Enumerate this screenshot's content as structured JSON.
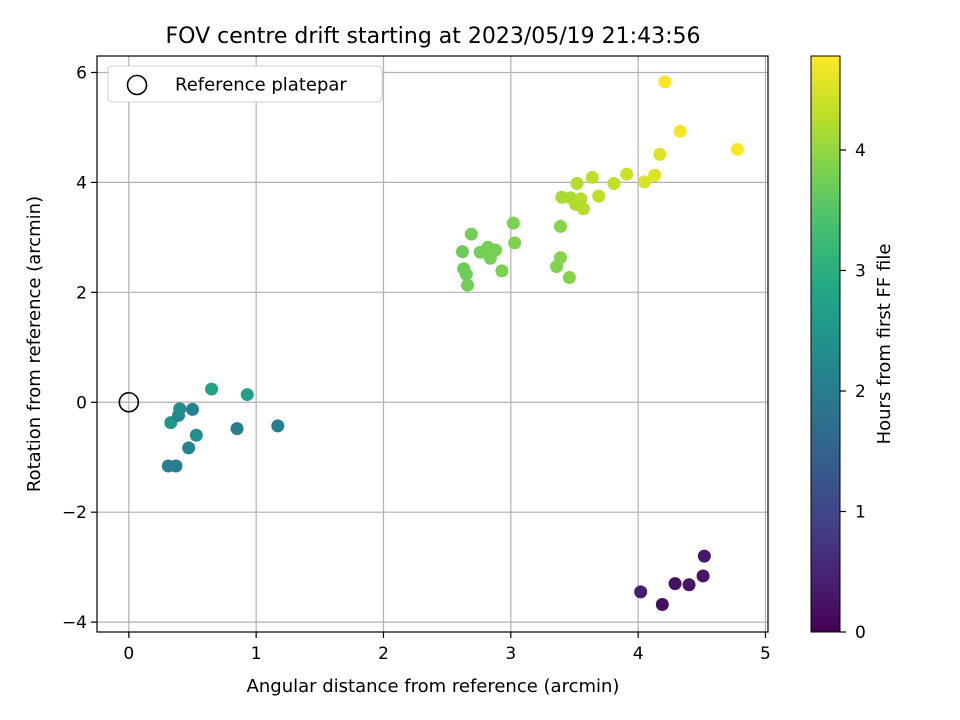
{
  "chart_data": {
    "type": "scatter",
    "title": "FOV centre drift starting at 2023/05/19 21:43:56",
    "xlabel": "Angular distance from reference (arcmin)",
    "ylabel": "Rotation from reference (arcmin)",
    "xlim": [
      -0.25,
      5.02
    ],
    "ylim": [
      -4.18,
      6.3
    ],
    "xticks": [
      0,
      1,
      2,
      3,
      4,
      5
    ],
    "xtick_labels": [
      "0",
      "1",
      "2",
      "3",
      "4",
      "5"
    ],
    "yticks": [
      -4,
      -2,
      0,
      2,
      4,
      6
    ],
    "ytick_labels": [
      "−4",
      "−2",
      "0",
      "2",
      "4",
      "6"
    ],
    "grid": true,
    "legend": {
      "location": "top-left",
      "entries": [
        "Reference platepar"
      ]
    },
    "reference_point": {
      "x": 0,
      "y": 0,
      "marker": "open-circle"
    },
    "colorbar": {
      "label": "Hours from first FF file",
      "range": [
        0,
        4.78
      ],
      "ticks": [
        0,
        1,
        2,
        3,
        4
      ],
      "tick_labels": [
        "0",
        "1",
        "2",
        "3",
        "4"
      ],
      "colormap": "viridis"
    },
    "points": [
      {
        "x": 4.52,
        "y": -2.8,
        "c": 0.3
      },
      {
        "x": 4.51,
        "y": -3.16,
        "c": 0.28
      },
      {
        "x": 4.4,
        "y": -3.32,
        "c": 0.25
      },
      {
        "x": 4.29,
        "y": -3.3,
        "c": 0.22
      },
      {
        "x": 4.19,
        "y": -3.68,
        "c": 0.18
      },
      {
        "x": 4.02,
        "y": -3.45,
        "c": 0.4
      },
      {
        "x": 0.31,
        "y": -1.16,
        "c": 2.0
      },
      {
        "x": 0.37,
        "y": -1.16,
        "c": 2.05
      },
      {
        "x": 0.47,
        "y": -0.83,
        "c": 2.15
      },
      {
        "x": 0.53,
        "y": -0.6,
        "c": 2.4
      },
      {
        "x": 0.33,
        "y": -0.37,
        "c": 2.5
      },
      {
        "x": 0.39,
        "y": -0.24,
        "c": 2.2
      },
      {
        "x": 0.4,
        "y": -0.12,
        "c": 2.3
      },
      {
        "x": 0.5,
        "y": -0.13,
        "c": 2.1
      },
      {
        "x": 0.85,
        "y": -0.48,
        "c": 2.0
      },
      {
        "x": 1.17,
        "y": -0.43,
        "c": 2.05
      },
      {
        "x": 0.65,
        "y": 0.24,
        "c": 2.75
      },
      {
        "x": 0.93,
        "y": 0.14,
        "c": 2.7
      },
      {
        "x": 2.62,
        "y": 2.74,
        "c": 3.7
      },
      {
        "x": 2.63,
        "y": 2.43,
        "c": 3.7
      },
      {
        "x": 2.65,
        "y": 2.33,
        "c": 3.72
      },
      {
        "x": 2.66,
        "y": 2.13,
        "c": 3.75
      },
      {
        "x": 2.69,
        "y": 3.06,
        "c": 3.75
      },
      {
        "x": 2.76,
        "y": 2.73,
        "c": 3.78
      },
      {
        "x": 2.82,
        "y": 2.82,
        "c": 3.8
      },
      {
        "x": 2.84,
        "y": 2.62,
        "c": 3.8
      },
      {
        "x": 2.88,
        "y": 2.77,
        "c": 3.82
      },
      {
        "x": 2.93,
        "y": 2.39,
        "c": 3.83
      },
      {
        "x": 3.02,
        "y": 3.26,
        "c": 3.83
      },
      {
        "x": 3.03,
        "y": 2.9,
        "c": 3.85
      },
      {
        "x": 3.36,
        "y": 2.47,
        "c": 3.88
      },
      {
        "x": 3.39,
        "y": 2.63,
        "c": 3.9
      },
      {
        "x": 3.46,
        "y": 2.27,
        "c": 3.9
      },
      {
        "x": 3.39,
        "y": 3.2,
        "c": 3.92
      },
      {
        "x": 3.4,
        "y": 3.73,
        "c": 4.15
      },
      {
        "x": 3.47,
        "y": 3.72,
        "c": 4.18
      },
      {
        "x": 3.52,
        "y": 3.98,
        "c": 4.22
      },
      {
        "x": 3.51,
        "y": 3.6,
        "c": 4.2
      },
      {
        "x": 3.55,
        "y": 3.7,
        "c": 4.25
      },
      {
        "x": 3.57,
        "y": 3.52,
        "c": 4.25
      },
      {
        "x": 3.64,
        "y": 4.09,
        "c": 4.3
      },
      {
        "x": 3.69,
        "y": 3.75,
        "c": 4.3
      },
      {
        "x": 3.81,
        "y": 3.98,
        "c": 4.35
      },
      {
        "x": 3.91,
        "y": 4.15,
        "c": 4.4
      },
      {
        "x": 4.05,
        "y": 4.01,
        "c": 4.5
      },
      {
        "x": 4.13,
        "y": 4.13,
        "c": 4.55
      },
      {
        "x": 4.17,
        "y": 4.51,
        "c": 4.55
      },
      {
        "x": 4.33,
        "y": 4.93,
        "c": 4.7
      },
      {
        "x": 4.21,
        "y": 5.83,
        "c": 4.78
      },
      {
        "x": 4.78,
        "y": 4.6,
        "c": 4.78
      }
    ]
  }
}
